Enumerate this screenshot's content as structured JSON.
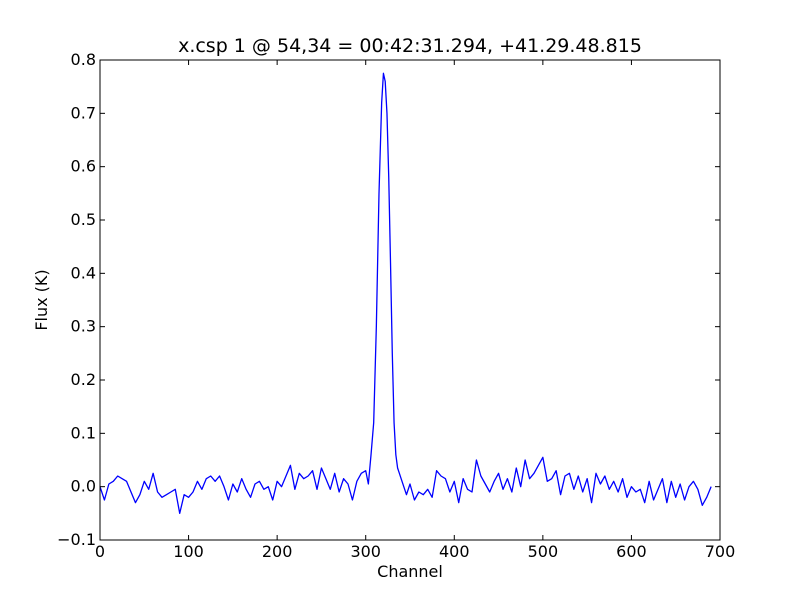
{
  "chart_data": {
    "type": "line",
    "title": "x.csp 1 @ 54,34 = 00:42:31.294, +41.29.48.815",
    "xlabel": "Channel",
    "ylabel": "Flux (K)",
    "xlim": [
      0,
      700
    ],
    "ylim": [
      -0.1,
      0.8
    ],
    "xticks": [
      0,
      100,
      200,
      300,
      400,
      500,
      600,
      700
    ],
    "yticks": [
      -0.1,
      0.0,
      0.1,
      0.2,
      0.3,
      0.4,
      0.5,
      0.6,
      0.7,
      0.8
    ],
    "xtick_labels": [
      "0",
      "100",
      "200",
      "300",
      "400",
      "500",
      "600",
      "700"
    ],
    "ytick_labels": [
      "−0.1",
      "0.0",
      "0.1",
      "0.2",
      "0.3",
      "0.4",
      "0.5",
      "0.6",
      "0.7",
      "0.8"
    ],
    "grid": false,
    "line_color": "#0000ff",
    "series": [
      {
        "x": [
          0,
          5,
          10,
          15,
          20,
          25,
          30,
          35,
          40,
          45,
          50,
          55,
          60,
          65,
          70,
          75,
          80,
          85,
          90,
          95,
          100,
          105,
          110,
          115,
          120,
          125,
          130,
          135,
          140,
          145,
          150,
          155,
          160,
          165,
          170,
          175,
          180,
          185,
          190,
          195,
          200,
          205,
          210,
          215,
          220,
          225,
          230,
          235,
          240,
          245,
          250,
          255,
          260,
          265,
          270,
          275,
          280,
          285,
          290,
          295,
          300,
          303,
          306,
          309,
          312,
          315,
          318,
          320,
          322,
          324,
          326,
          328,
          330,
          332,
          334,
          336,
          338,
          340,
          343,
          346,
          350,
          355,
          360,
          365,
          370,
          375,
          380,
          385,
          390,
          395,
          400,
          405,
          410,
          415,
          420,
          425,
          430,
          435,
          440,
          445,
          450,
          455,
          460,
          465,
          470,
          475,
          480,
          485,
          490,
          495,
          500,
          505,
          510,
          515,
          520,
          525,
          530,
          535,
          540,
          545,
          550,
          555,
          560,
          565,
          570,
          575,
          580,
          585,
          590,
          595,
          600,
          605,
          610,
          615,
          620,
          625,
          630,
          635,
          640,
          645,
          650,
          655,
          660,
          665,
          670,
          675,
          680,
          685,
          690
        ],
        "values": [
          0.0,
          -0.025,
          0.005,
          0.01,
          0.02,
          0.015,
          0.01,
          -0.01,
          -0.03,
          -0.015,
          0.01,
          -0.005,
          0.025,
          -0.01,
          -0.02,
          -0.015,
          -0.01,
          -0.005,
          -0.05,
          -0.015,
          -0.02,
          -0.01,
          0.01,
          -0.005,
          0.015,
          0.02,
          0.01,
          0.02,
          0.0,
          -0.025,
          0.005,
          -0.01,
          0.015,
          -0.005,
          -0.02,
          0.005,
          0.01,
          -0.005,
          0.0,
          -0.025,
          0.01,
          0.0,
          0.02,
          0.04,
          -0.005,
          0.025,
          0.015,
          0.02,
          0.03,
          -0.005,
          0.035,
          0.015,
          -0.005,
          0.025,
          -0.01,
          0.015,
          0.005,
          -0.025,
          0.01,
          0.025,
          0.03,
          0.005,
          0.06,
          0.12,
          0.3,
          0.55,
          0.72,
          0.775,
          0.76,
          0.7,
          0.58,
          0.42,
          0.25,
          0.12,
          0.06,
          0.035,
          0.025,
          0.015,
          0.0,
          -0.015,
          0.005,
          -0.025,
          -0.01,
          -0.015,
          -0.005,
          -0.02,
          0.03,
          0.02,
          0.015,
          -0.01,
          0.01,
          -0.03,
          0.015,
          -0.005,
          -0.01,
          0.05,
          0.02,
          0.005,
          -0.01,
          0.01,
          0.025,
          -0.005,
          0.015,
          -0.01,
          0.035,
          0.0,
          0.05,
          0.015,
          0.025,
          0.04,
          0.055,
          0.01,
          0.015,
          0.03,
          -0.015,
          0.02,
          0.025,
          -0.005,
          0.02,
          -0.01,
          0.015,
          -0.03,
          0.025,
          0.005,
          0.02,
          -0.005,
          0.01,
          -0.01,
          0.015,
          -0.02,
          0.0,
          -0.01,
          -0.005,
          -0.03,
          0.01,
          -0.025,
          -0.005,
          0.015,
          -0.03,
          0.01,
          -0.02,
          0.005,
          -0.025,
          0.0,
          0.01,
          -0.005,
          -0.035,
          -0.02,
          0.0
        ]
      }
    ]
  }
}
